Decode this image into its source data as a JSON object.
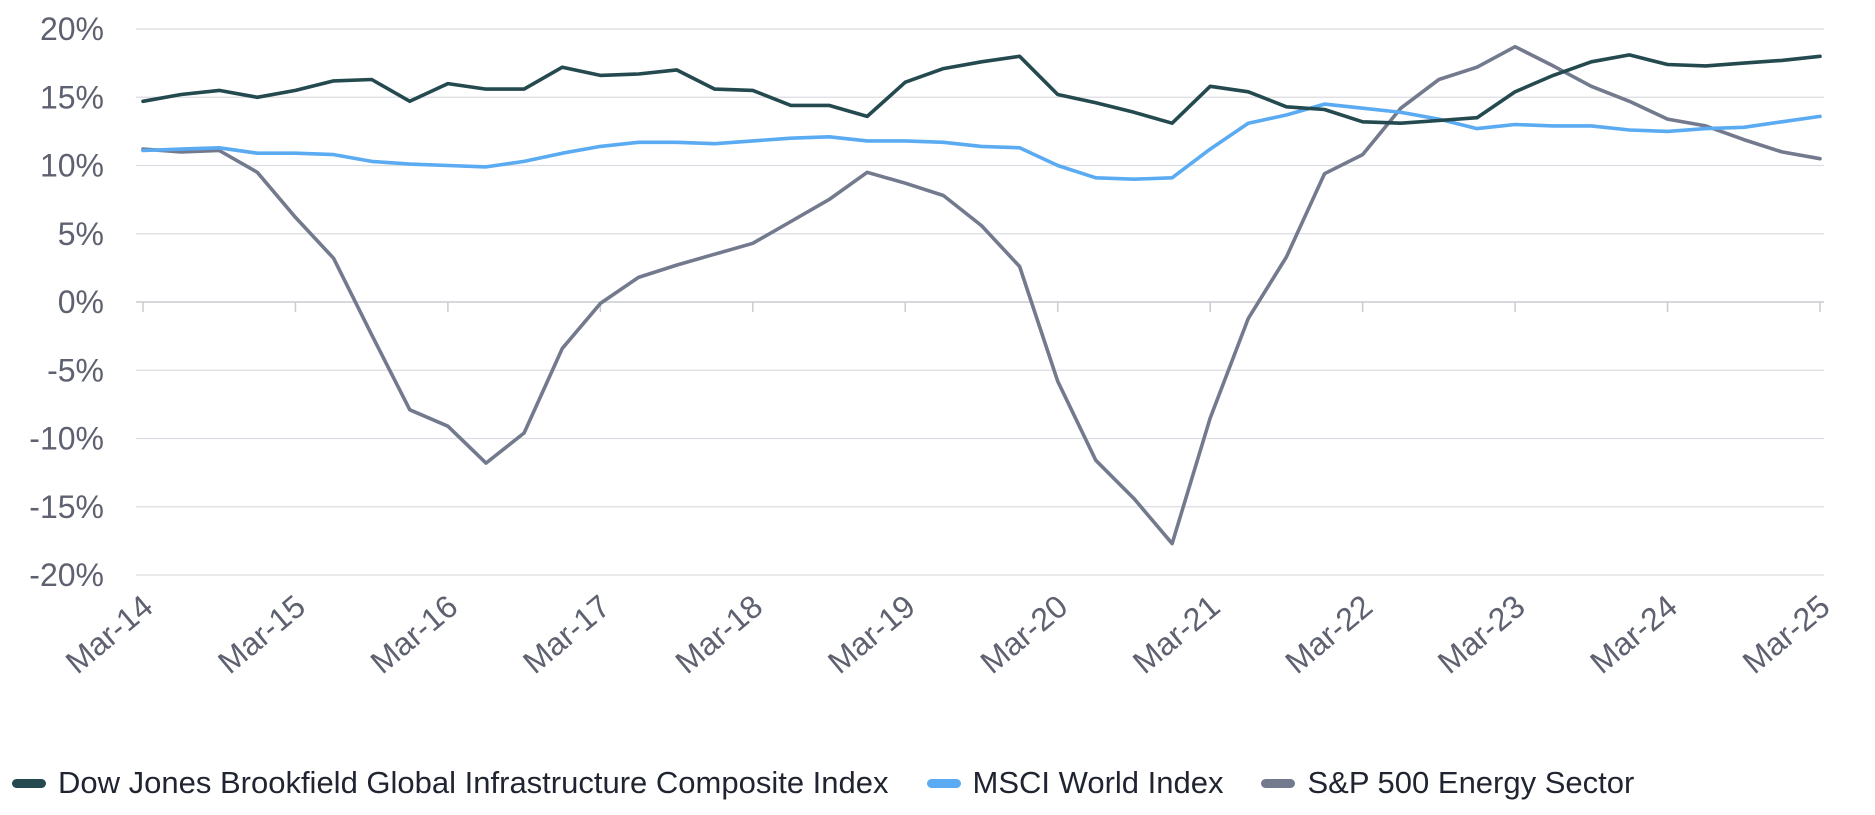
{
  "chart_data": {
    "type": "line",
    "title": "",
    "xlabel": "",
    "ylabel": "",
    "ylim": [
      -20,
      20
    ],
    "y_ticks": [
      "20%",
      "15%",
      "10%",
      "5%",
      "0%",
      "-5%",
      "-10%",
      "-15%",
      "-20%"
    ],
    "y_tick_values": [
      20,
      15,
      10,
      5,
      0,
      -5,
      -10,
      -15,
      -20
    ],
    "x_tick_labels": [
      "Mar-14",
      "Mar-15",
      "Mar-16",
      "Mar-17",
      "Mar-18",
      "Mar-19",
      "Mar-20",
      "Mar-21",
      "Mar-22",
      "Mar-23",
      "Mar-24",
      "Mar-25"
    ],
    "quarters_per_year": 4,
    "grid": true,
    "legend_position": "bottom",
    "series": [
      {
        "name": "Dow Jones Brookfield Global Infrastructure Composite Index",
        "color": "#244a50",
        "values": [
          14.7,
          15.2,
          15.5,
          15.0,
          15.5,
          16.2,
          16.3,
          14.7,
          16.0,
          15.6,
          15.6,
          17.2,
          16.6,
          16.7,
          17.0,
          15.6,
          15.5,
          14.4,
          14.4,
          13.6,
          16.1,
          17.1,
          17.6,
          18.0,
          15.2,
          14.6,
          13.9,
          13.1,
          15.8,
          15.4,
          14.3,
          14.1,
          13.2,
          13.1,
          13.3,
          13.5,
          15.4,
          16.6,
          17.6,
          18.1,
          17.4,
          17.3,
          17.5,
          17.7,
          18.0
        ]
      },
      {
        "name": "MSCI World Index",
        "color": "#5aabf2",
        "values": [
          11.1,
          11.2,
          11.3,
          10.9,
          10.9,
          10.8,
          10.3,
          10.1,
          10.0,
          9.9,
          10.3,
          10.9,
          11.4,
          11.7,
          11.7,
          11.6,
          11.8,
          12.0,
          12.1,
          11.8,
          11.8,
          11.7,
          11.4,
          11.3,
          10.0,
          9.1,
          9.0,
          9.1,
          11.2,
          13.1,
          13.7,
          14.5,
          14.2,
          13.9,
          13.4,
          12.7,
          13.0,
          12.9,
          12.9,
          12.6,
          12.5,
          12.7,
          12.8,
          13.2,
          13.6
        ]
      },
      {
        "name": "S&P 500 Energy Sector",
        "color": "#747a8e",
        "values": [
          11.2,
          11.0,
          11.1,
          9.5,
          6.2,
          3.2,
          -2.4,
          -7.9,
          -9.1,
          -11.8,
          -9.6,
          -3.4,
          -0.1,
          1.8,
          2.7,
          3.5,
          4.3,
          5.9,
          7.5,
          9.5,
          8.7,
          7.8,
          5.6,
          2.6,
          -5.8,
          -11.6,
          -14.4,
          -17.7,
          -8.5,
          -1.2,
          3.3,
          9.4,
          10.8,
          14.2,
          16.3,
          17.2,
          18.7,
          17.3,
          15.8,
          14.7,
          13.4,
          12.9,
          11.9,
          11.0,
          10.5
        ]
      }
    ]
  }
}
